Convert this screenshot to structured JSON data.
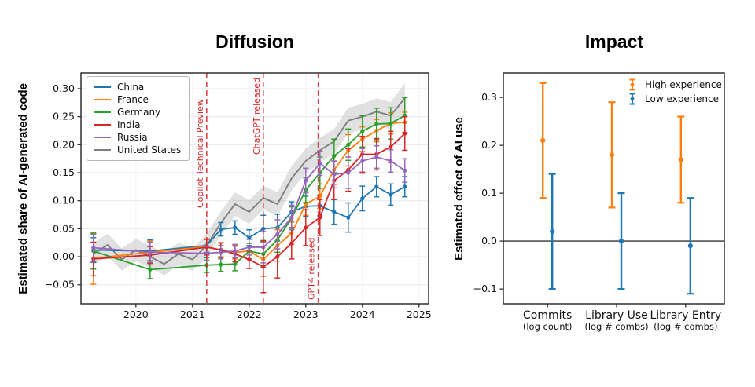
{
  "page": {
    "background": "#ffffff"
  },
  "chart_data": [
    {
      "type": "line",
      "title": "Diffusion",
      "ylabel": "Estimated share of AI-generated code",
      "xlim": [
        2019.03,
        2025.17
      ],
      "ylim": [
        -0.084,
        0.328
      ],
      "x_tick_values": [
        2020,
        2021,
        2022,
        2023,
        2024,
        2025
      ],
      "x_tick_labels": [
        "2020",
        "2021",
        "2022",
        "2023",
        "2024",
        "2025"
      ],
      "y_tick_values": [
        -0.05,
        0.0,
        0.05,
        0.1,
        0.15,
        0.2,
        0.25,
        0.3
      ],
      "y_tick_labels": [
        "−0.05",
        "0.00",
        "0.05",
        "0.10",
        "0.15",
        "0.20",
        "0.25",
        "0.30"
      ],
      "grid": "very light horizontal and vertical gridlines at ticks",
      "legend_position": "upper left framed box",
      "series": [
        {
          "name": "China",
          "color": "#1f77b4",
          "marker": "o",
          "x": [
            2019.25,
            2020.25,
            2021.25,
            2021.5,
            2021.75,
            2022.0,
            2022.25,
            2022.5,
            2022.75,
            2023.0,
            2023.25,
            2023.5,
            2023.75,
            2024.0,
            2024.25,
            2024.5,
            2024.75
          ],
          "y": [
            0.012,
            0.01,
            0.02,
            0.049,
            0.052,
            0.034,
            0.05,
            0.052,
            0.08,
            0.09,
            0.091,
            0.08,
            0.07,
            0.104,
            0.125,
            0.111,
            0.125
          ],
          "err": [
            0.022,
            0.02,
            0.012,
            0.012,
            0.012,
            0.014,
            0.024,
            0.024,
            0.018,
            0.018,
            0.018,
            0.022,
            0.026,
            0.022,
            0.018,
            0.019,
            0.018
          ]
        },
        {
          "name": "France",
          "color": "#ff7f0e",
          "marker": "o",
          "x": [
            2019.25,
            2020.25,
            2021.25,
            2021.5,
            2021.75,
            2022.0,
            2022.25,
            2022.5,
            2022.75,
            2023.0,
            2023.25,
            2023.5,
            2023.75,
            2024.0,
            2024.25,
            2024.5,
            2024.75
          ],
          "y": [
            -0.003,
            0.008,
            0.018,
            0.012,
            0.008,
            0.01,
            -0.005,
            0.02,
            0.042,
            0.094,
            0.108,
            0.155,
            0.19,
            0.21,
            0.225,
            0.238,
            0.24
          ],
          "err": [
            0.046,
            0.02,
            0.014,
            0.012,
            0.012,
            0.014,
            0.03,
            0.028,
            0.02,
            0.02,
            0.022,
            0.026,
            0.028,
            0.022,
            0.02,
            0.019,
            0.018
          ]
        },
        {
          "name": "Germany",
          "color": "#2ca02c",
          "marker": "o",
          "x": [
            2019.25,
            2020.25,
            2021.25,
            2021.5,
            2021.75,
            2022.0,
            2022.25,
            2022.5,
            2022.75,
            2023.0,
            2023.25,
            2023.5,
            2023.75,
            2024.0,
            2024.25,
            2024.5,
            2024.75
          ],
          "y": [
            0.01,
            -0.023,
            -0.015,
            -0.014,
            -0.013,
            0.01,
            0.005,
            0.03,
            0.069,
            0.119,
            0.15,
            0.18,
            0.2,
            0.224,
            0.237,
            0.238,
            0.252
          ],
          "err": [
            0.032,
            0.016,
            0.013,
            0.012,
            0.012,
            0.014,
            0.024,
            0.022,
            0.02,
            0.022,
            0.028,
            0.03,
            0.028,
            0.028,
            0.028,
            0.028,
            0.032
          ]
        },
        {
          "name": "India",
          "color": "#d62728",
          "marker": "o",
          "x": [
            2019.25,
            2020.25,
            2021.25,
            2021.5,
            2021.75,
            2022.0,
            2022.25,
            2022.5,
            2022.75,
            2023.0,
            2023.25,
            2023.5,
            2023.75,
            2024.0,
            2024.25,
            2024.5,
            2024.75
          ],
          "y": [
            -0.004,
            0.003,
            0.017,
            0.012,
            0.005,
            -0.005,
            -0.018,
            0.0,
            0.024,
            0.052,
            0.07,
            0.136,
            0.155,
            0.183,
            0.183,
            0.196,
            0.22
          ],
          "err": [
            0.03,
            0.015,
            0.014,
            0.013,
            0.014,
            0.016,
            0.046,
            0.038,
            0.028,
            0.032,
            0.032,
            0.034,
            0.038,
            0.032,
            0.028,
            0.028,
            0.03
          ]
        },
        {
          "name": "Russia",
          "color": "#9467bd",
          "marker": "o",
          "x": [
            2019.25,
            2020.25,
            2021.25,
            2021.5,
            2021.75,
            2022.0,
            2022.25,
            2022.5,
            2022.75,
            2023.0,
            2023.25,
            2023.5,
            2023.75,
            2024.0,
            2024.25,
            2024.5,
            2024.75
          ],
          "y": [
            0.016,
            0.008,
            0.006,
            0.008,
            0.01,
            0.017,
            0.017,
            0.04,
            0.07,
            0.136,
            0.167,
            0.147,
            0.15,
            0.171,
            0.178,
            0.171,
            0.154
          ],
          "err": [
            0.024,
            0.018,
            0.012,
            0.012,
            0.012,
            0.014,
            0.028,
            0.026,
            0.022,
            0.022,
            0.022,
            0.024,
            0.028,
            0.022,
            0.02,
            0.02,
            0.021
          ]
        },
        {
          "name": "United States",
          "color": "#7f7f7f",
          "marker": "none",
          "style": "line with shaded confidence band",
          "x": [
            2019.25,
            2019.5,
            2019.75,
            2020.0,
            2020.25,
            2020.5,
            2020.75,
            2021.0,
            2021.25,
            2021.5,
            2021.75,
            2022.0,
            2022.25,
            2022.5,
            2022.75,
            2023.0,
            2023.25,
            2023.5,
            2023.75,
            2024.0,
            2024.25,
            2024.5,
            2024.75
          ],
          "y": [
            0.005,
            0.021,
            -0.005,
            0.012,
            0.0,
            -0.013,
            0.005,
            -0.005,
            0.02,
            0.06,
            0.094,
            0.08,
            0.105,
            0.094,
            0.14,
            0.171,
            0.19,
            0.206,
            0.243,
            0.25,
            0.259,
            0.252,
            0.283
          ],
          "band": [
            0.02,
            0.02,
            0.02,
            0.02,
            0.02,
            0.02,
            0.02,
            0.02,
            0.021,
            0.021,
            0.021,
            0.021,
            0.021,
            0.021,
            0.022,
            0.022,
            0.022,
            0.022,
            0.023,
            0.023,
            0.024,
            0.024,
            0.027
          ]
        }
      ],
      "annotations": [
        {
          "label": "Copilot Technical Preview",
          "x": 2021.25,
          "color": "#d62728",
          "style": "dashed vertical line, rotated red label"
        },
        {
          "label": "ChatGPT released",
          "x": 2022.25,
          "color": "#d62728",
          "style": "dashed vertical line, rotated red label"
        },
        {
          "label": "GPT4 released",
          "x": 2023.22,
          "color": "#d62728",
          "style": "dashed vertical line, rotated red label"
        }
      ]
    },
    {
      "type": "scatter",
      "subtype": "point estimates with confidence-interval error bars",
      "title": "Impact",
      "ylabel": "Estimated effect of AI use",
      "ylim": [
        -0.131,
        0.351
      ],
      "y_tick_values": [
        -0.1,
        0.0,
        0.1,
        0.2,
        0.3
      ],
      "y_tick_labels": [
        "−0.1",
        "0.0",
        "0.1",
        "0.2",
        "0.3"
      ],
      "zero_line": true,
      "grid": "none",
      "legend_position": "upper right unframed",
      "categories": [
        {
          "label": "Commits",
          "sublabel": "(log count)"
        },
        {
          "label": "Library Use",
          "sublabel": "(log # combs)"
        },
        {
          "label": "Library Entry",
          "sublabel": "(log # combs)"
        }
      ],
      "series": [
        {
          "name": "High experience",
          "color": "#ff7f0e",
          "marker": "o",
          "values": [
            0.21,
            0.18,
            0.17
          ],
          "ci_low": [
            0.09,
            0.07,
            0.08
          ],
          "ci_high": [
            0.33,
            0.29,
            0.26
          ]
        },
        {
          "name": "Low experience",
          "color": "#1f77b4",
          "marker": "o",
          "values": [
            0.02,
            0.0,
            -0.01
          ],
          "ci_low": [
            -0.1,
            -0.1,
            -0.11
          ],
          "ci_high": [
            0.14,
            0.1,
            0.09
          ]
        }
      ]
    }
  ]
}
